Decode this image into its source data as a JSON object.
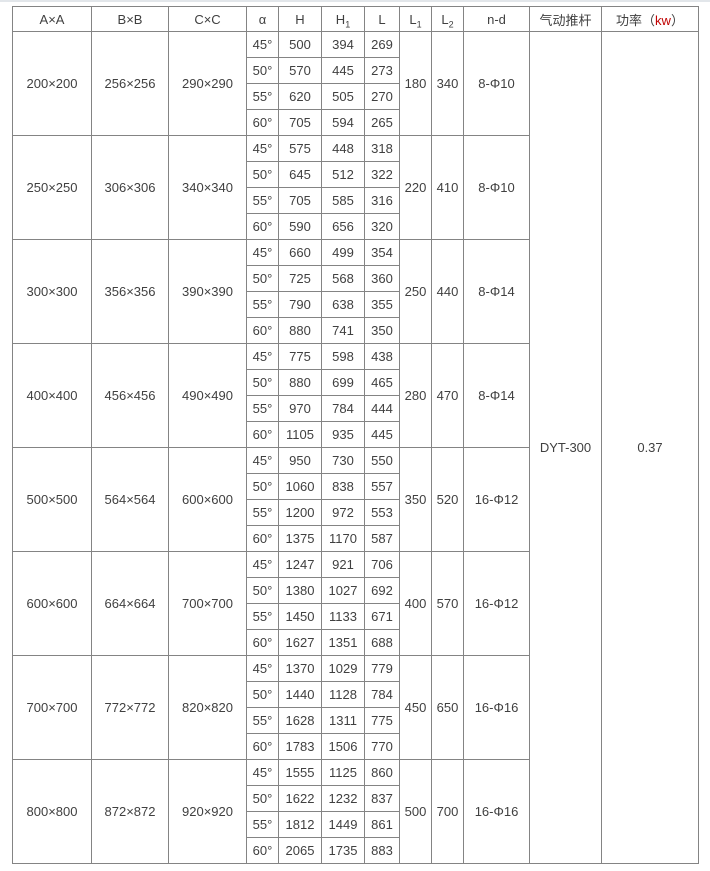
{
  "header": {
    "columns": [
      {
        "label": "A×A"
      },
      {
        "label": "B×B"
      },
      {
        "label": "C×C"
      },
      {
        "label": "α"
      },
      {
        "label": "H"
      },
      {
        "label": "H",
        "sub": "1"
      },
      {
        "label": "L"
      },
      {
        "label": "L",
        "sub": "1"
      },
      {
        "label": "L",
        "sub": "2"
      },
      {
        "label": "n-d"
      },
      {
        "label": "气动推杆"
      }
    ],
    "power": {
      "pre": "功率（",
      "unit": "kw",
      "post": "）"
    }
  },
  "merged": {
    "actuator_model": "DYT-300",
    "power_kw": "0.37"
  },
  "groups": [
    {
      "a": "200×200",
      "b": "256×256",
      "c": "290×290",
      "rows": [
        {
          "angle": "45°",
          "h": "500",
          "h1": "394",
          "l": "269"
        },
        {
          "angle": "50°",
          "h": "570",
          "h1": "445",
          "l": "273"
        },
        {
          "angle": "55°",
          "h": "620",
          "h1": "505",
          "l": "270"
        },
        {
          "angle": "60°",
          "h": "705",
          "h1": "594",
          "l": "265"
        }
      ],
      "l1": "180",
      "l2": "340",
      "nd": "8-Φ10"
    },
    {
      "a": "250×250",
      "b": "306×306",
      "c": "340×340",
      "rows": [
        {
          "angle": "45°",
          "h": "575",
          "h1": "448",
          "l": "318"
        },
        {
          "angle": "50°",
          "h": "645",
          "h1": "512",
          "l": "322"
        },
        {
          "angle": "55°",
          "h": "705",
          "h1": "585",
          "l": "316"
        },
        {
          "angle": "60°",
          "h": "590",
          "h1": "656",
          "l": "320"
        }
      ],
      "l1": "220",
      "l2": "410",
      "nd": "8-Φ10"
    },
    {
      "a": "300×300",
      "b": "356×356",
      "c": "390×390",
      "rows": [
        {
          "angle": "45°",
          "h": "660",
          "h1": "499",
          "l": "354"
        },
        {
          "angle": "50°",
          "h": "725",
          "h1": "568",
          "l": "360"
        },
        {
          "angle": "55°",
          "h": "790",
          "h1": "638",
          "l": "355"
        },
        {
          "angle": "60°",
          "h": "880",
          "h1": "741",
          "l": "350"
        }
      ],
      "l1": "250",
      "l2": "440",
      "nd": "8-Φ14"
    },
    {
      "a": "400×400",
      "b": "456×456",
      "c": "490×490",
      "rows": [
        {
          "angle": "45°",
          "h": "775",
          "h1": "598",
          "l": "438"
        },
        {
          "angle": "50°",
          "h": "880",
          "h1": "699",
          "l": "465"
        },
        {
          "angle": "55°",
          "h": "970",
          "h1": "784",
          "l": "444"
        },
        {
          "angle": "60°",
          "h": "1105",
          "h1": "935",
          "l": "445"
        }
      ],
      "l1": "280",
      "l2": "470",
      "nd": "8-Φ14"
    },
    {
      "a": "500×500",
      "b": "564×564",
      "c": "600×600",
      "rows": [
        {
          "angle": "45°",
          "h": "950",
          "h1": "730",
          "l": "550"
        },
        {
          "angle": "50°",
          "h": "1060",
          "h1": "838",
          "l": "557"
        },
        {
          "angle": "55°",
          "h": "1200",
          "h1": "972",
          "l": "553"
        },
        {
          "angle": "60°",
          "h": "1375",
          "h1": "1170",
          "l": "587"
        }
      ],
      "l1": "350",
      "l2": "520",
      "nd": "16-Φ12"
    },
    {
      "a": "600×600",
      "b": "664×664",
      "c": "700×700",
      "rows": [
        {
          "angle": "45°",
          "h": "1247",
          "h1": "921",
          "l": "706"
        },
        {
          "angle": "50°",
          "h": "1380",
          "h1": "1027",
          "l": "692"
        },
        {
          "angle": "55°",
          "h": "1450",
          "h1": "1133",
          "l": "671"
        },
        {
          "angle": "60°",
          "h": "1627",
          "h1": "1351",
          "l": "688"
        }
      ],
      "l1": "400",
      "l2": "570",
      "nd": "16-Φ12"
    },
    {
      "a": "700×700",
      "b": "772×772",
      "c": "820×820",
      "rows": [
        {
          "angle": "45°",
          "h": "1370",
          "h1": "1029",
          "l": "779"
        },
        {
          "angle": "50°",
          "h": "1440",
          "h1": "1128",
          "l": "784"
        },
        {
          "angle": "55°",
          "h": "1628",
          "h1": "1311",
          "l": "775"
        },
        {
          "angle": "60°",
          "h": "1783",
          "h1": "1506",
          "l": "770"
        }
      ],
      "l1": "450",
      "l2": "650",
      "nd": "16-Φ16"
    },
    {
      "a": "800×800",
      "b": "872×872",
      "c": "920×920",
      "rows": [
        {
          "angle": "45°",
          "h": "1555",
          "h1": "1125",
          "l": "860"
        },
        {
          "angle": "50°",
          "h": "1622",
          "h1": "1232",
          "l": "837"
        },
        {
          "angle": "55°",
          "h": "1812",
          "h1": "1449",
          "l": "861"
        },
        {
          "angle": "60°",
          "h": "2065",
          "h1": "1735",
          "l": "883"
        }
      ],
      "l1": "500",
      "l2": "700",
      "nd": "16-Φ16"
    }
  ]
}
